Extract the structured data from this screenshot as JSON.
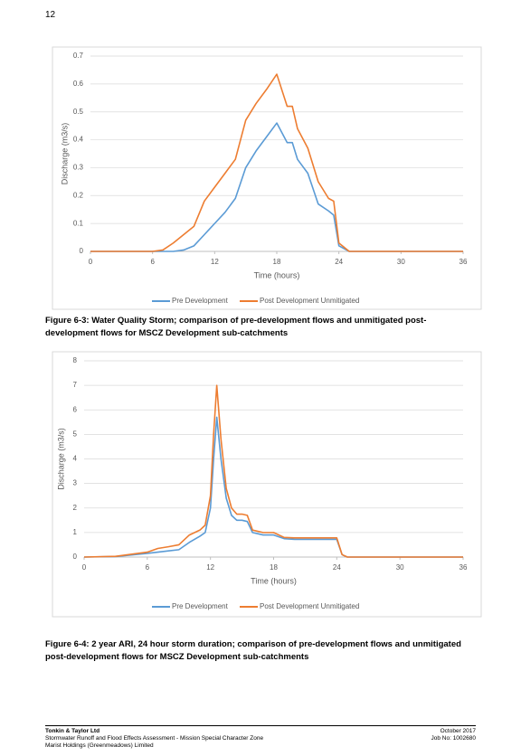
{
  "page_number": "12",
  "chart_data": [
    {
      "type": "line",
      "ylabel": "Discharge (m3/s)",
      "xlabel": "Time (hours)",
      "x": [
        0,
        6,
        7,
        8,
        9,
        10,
        11,
        12,
        13,
        14,
        15,
        16,
        17,
        18,
        19,
        19.5,
        20,
        21,
        22,
        23,
        23.5,
        24,
        25,
        30,
        36
      ],
      "series": [
        {
          "name": "Pre Development",
          "color": "#5b9bd5",
          "values": [
            0,
            0,
            0,
            0,
            0.005,
            0.02,
            0.06,
            0.1,
            0.14,
            0.19,
            0.3,
            0.36,
            0.41,
            0.46,
            0.39,
            0.39,
            0.33,
            0.28,
            0.17,
            0.145,
            0.13,
            0.02,
            0,
            0,
            0
          ]
        },
        {
          "name": "Post Development Unmitigated",
          "color": "#ed7d31",
          "values": [
            0,
            0,
            0.005,
            0.03,
            0.06,
            0.09,
            0.18,
            0.23,
            0.28,
            0.33,
            0.47,
            0.53,
            0.58,
            0.635,
            0.52,
            0.52,
            0.44,
            0.37,
            0.25,
            0.19,
            0.18,
            0.03,
            0,
            0,
            0
          ]
        }
      ],
      "xlim": [
        0,
        36
      ],
      "xticks": [
        0,
        6,
        12,
        18,
        24,
        30,
        36
      ],
      "ylim": [
        0,
        0.7
      ],
      "yticks": [
        0,
        0.1,
        0.2,
        0.3,
        0.4,
        0.5,
        0.6,
        0.7
      ],
      "grid": true,
      "legend": "bottom"
    },
    {
      "type": "line",
      "ylabel": "Discharge (m3/s)",
      "xlabel": "Time (hours)",
      "x": [
        0,
        3,
        6,
        7,
        8,
        9,
        10,
        11,
        11.5,
        12,
        12.3,
        12.6,
        13,
        13.5,
        14,
        14.5,
        15,
        15.5,
        16,
        17,
        18,
        19,
        20,
        24,
        24.5,
        25,
        30,
        36
      ],
      "series": [
        {
          "name": "Pre Development",
          "color": "#5b9bd5",
          "values": [
            0,
            0.02,
            0.15,
            0.2,
            0.25,
            0.3,
            0.6,
            0.85,
            1.0,
            2.0,
            4.0,
            5.7,
            4.0,
            2.4,
            1.7,
            1.5,
            1.5,
            1.45,
            1.0,
            0.9,
            0.9,
            0.75,
            0.72,
            0.72,
            0.1,
            0,
            0,
            0
          ]
        },
        {
          "name": "Post Development Unmitigated",
          "color": "#ed7d31",
          "values": [
            0,
            0.03,
            0.2,
            0.35,
            0.42,
            0.5,
            0.9,
            1.1,
            1.3,
            2.5,
            5.0,
            7.0,
            4.8,
            2.8,
            2.0,
            1.75,
            1.75,
            1.7,
            1.1,
            1.0,
            1.0,
            0.8,
            0.78,
            0.78,
            0.1,
            0,
            0,
            0
          ]
        }
      ],
      "xlim": [
        0,
        36
      ],
      "xticks": [
        0,
        6,
        12,
        18,
        24,
        30,
        36
      ],
      "ylim": [
        0,
        8
      ],
      "yticks": [
        0,
        1,
        2,
        3,
        4,
        5,
        6,
        7,
        8
      ],
      "grid": true,
      "legend": "bottom"
    }
  ],
  "captions": [
    "Figure 6-3: Water Quality Storm; comparison of pre-development flows and unmitigated post-development flows for MSCZ Development sub-catchments",
    "Figure 6-4: 2 year ARI, 24 hour storm duration; comparison of pre-development flows and unmitigated post-development flows for MSCZ Development sub-catchments"
  ],
  "footer": {
    "company": "Tonkin & Taylor Ltd",
    "report": "Stormwater Runoff and Flood Effects Assessment - Mission Special Character Zone",
    "client": "Marist Holdings (Greenmeadows) Limited",
    "date": "October 2017",
    "job": "Job No: 1002680"
  }
}
